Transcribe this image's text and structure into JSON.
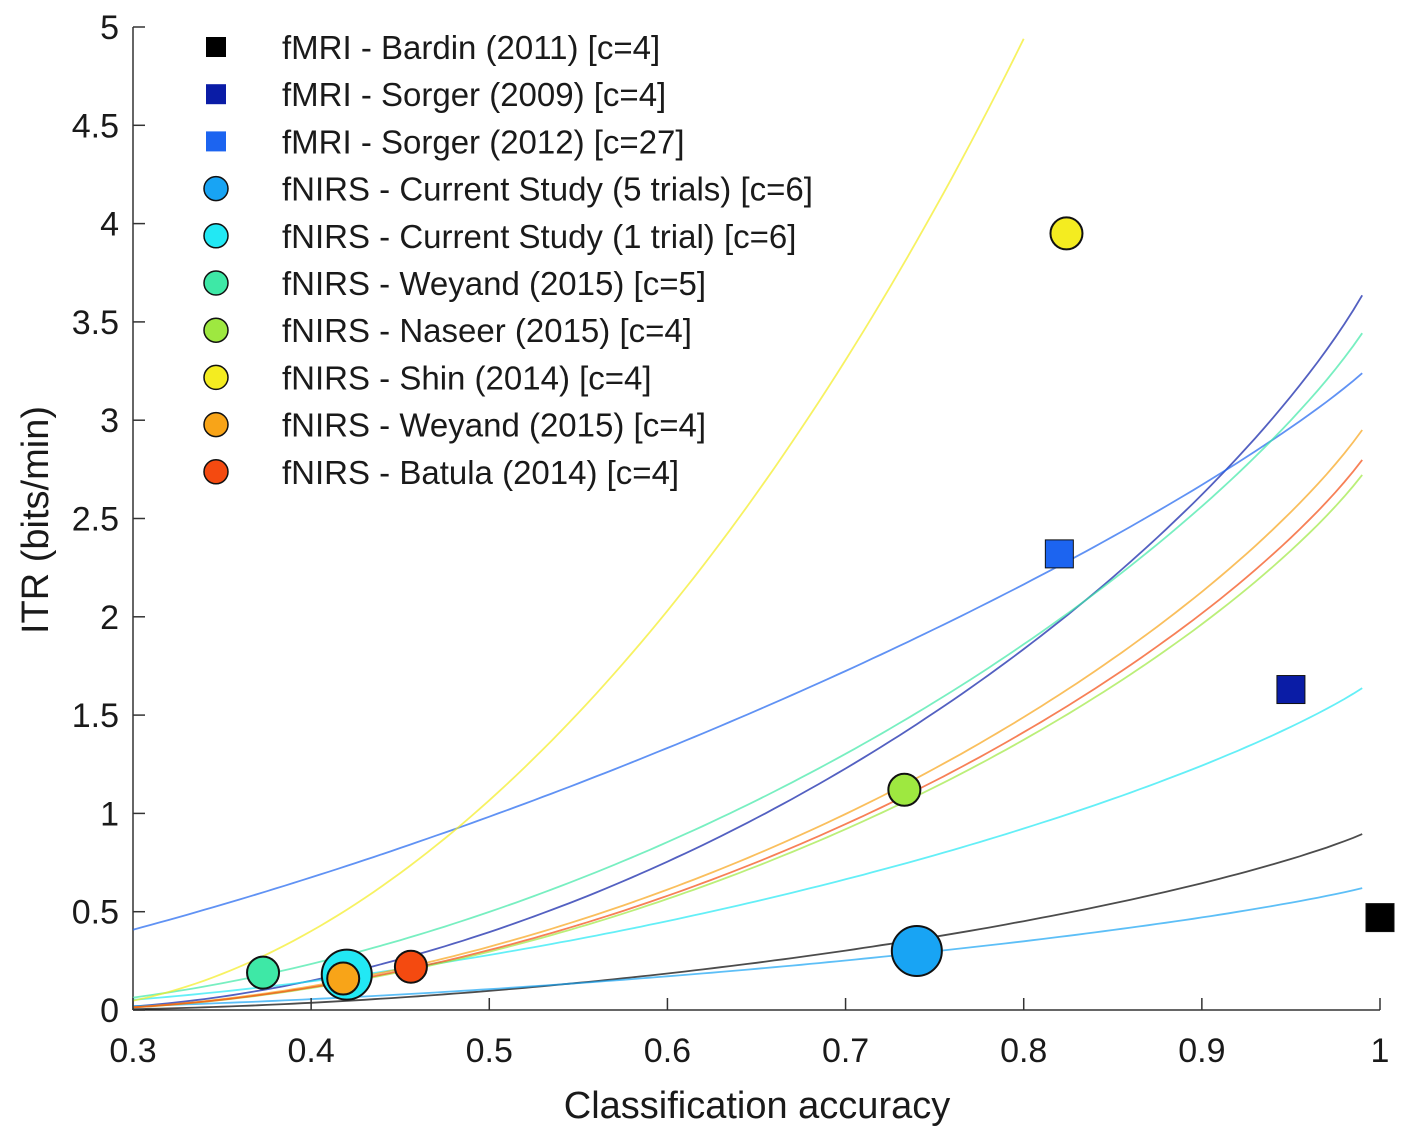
{
  "chart_data": {
    "type": "scatter",
    "xlabel": "Classification accuracy",
    "ylabel": "ITR (bits/min)",
    "xlim": [
      0.3,
      1
    ],
    "ylim": [
      0,
      5
    ],
    "xticks": [
      "0.3",
      "0.4",
      "0.5",
      "0.6",
      "0.7",
      "0.8",
      "0.9",
      "1"
    ],
    "yticks": [
      "0",
      "0.5",
      "1",
      "1.5",
      "2",
      "2.5",
      "3",
      "3.5",
      "4",
      "4.5",
      "5"
    ],
    "legend_position": "top-left",
    "series": [
      {
        "name": "fMRI - Bardin (2011) [c=4]",
        "marker": "square",
        "color": "#000000",
        "c": 4,
        "trials_per_min": 0.47,
        "points": [
          {
            "x": 1.0,
            "y": 0.47
          }
        ]
      },
      {
        "name": "fMRI - Sorger (2009) [c=4]",
        "marker": "square",
        "color": "#0a1ca6",
        "c": 4,
        "trials_per_min": 1.91,
        "points": [
          {
            "x": 0.95,
            "y": 1.63
          }
        ]
      },
      {
        "name": "fMRI - Sorger (2012) [c=27]",
        "marker": "square",
        "color": "#1c64f0",
        "c": 27,
        "trials_per_min": 0.7,
        "points": [
          {
            "x": 0.82,
            "y": 2.32
          }
        ]
      },
      {
        "name": "fNIRS - Current Study (5 trials) [c=6]",
        "marker": "circle",
        "color": "#18a4f4",
        "c": 6,
        "trials_per_min": 0.25,
        "points": [
          {
            "x": 0.74,
            "y": 0.3
          }
        ]
      },
      {
        "name": "fNIRS - Current Study (1 trial) [c=6]",
        "marker": "circle",
        "color": "#22e8f4",
        "c": 6,
        "trials_per_min": 0.66,
        "points": [
          {
            "x": 0.42,
            "y": 0.18
          }
        ]
      },
      {
        "name": "fNIRS - Weyand (2015) [c=5]",
        "marker": "circle",
        "color": "#3ee8a6",
        "c": 5,
        "trials_per_min": 1.55,
        "points": [
          {
            "x": 0.373,
            "y": 0.19
          }
        ]
      },
      {
        "name": "fNIRS - Naseer (2015) [c=4]",
        "marker": "circle",
        "color": "#9ee840",
        "c": 4,
        "trials_per_min": 1.43,
        "points": [
          {
            "x": 0.733,
            "y": 1.12
          }
        ]
      },
      {
        "name": "fNIRS - Shin (2014) [c=4]",
        "marker": "circle",
        "color": "#f4ec20",
        "c": 4,
        "trials_per_min": 5.14,
        "points": [
          {
            "x": 0.824,
            "y": 3.95
          }
        ]
      },
      {
        "name": "fNIRS - Weyand (2015) [c=4]",
        "marker": "circle",
        "color": "#f8a418",
        "c": 4,
        "trials_per_min": 1.55,
        "points": [
          {
            "x": 0.418,
            "y": 0.16
          }
        ]
      },
      {
        "name": "fNIRS - Batula (2014) [c=4]",
        "marker": "circle",
        "color": "#f44a10",
        "c": 4,
        "trials_per_min": 1.47,
        "points": [
          {
            "x": 0.456,
            "y": 0.22
          }
        ]
      }
    ],
    "curves_note": "Each series has a faint ITR curve vs accuracy (Wolpaw ITR scaled by trials_per_min) over accuracy 0.3 to 0.99"
  }
}
